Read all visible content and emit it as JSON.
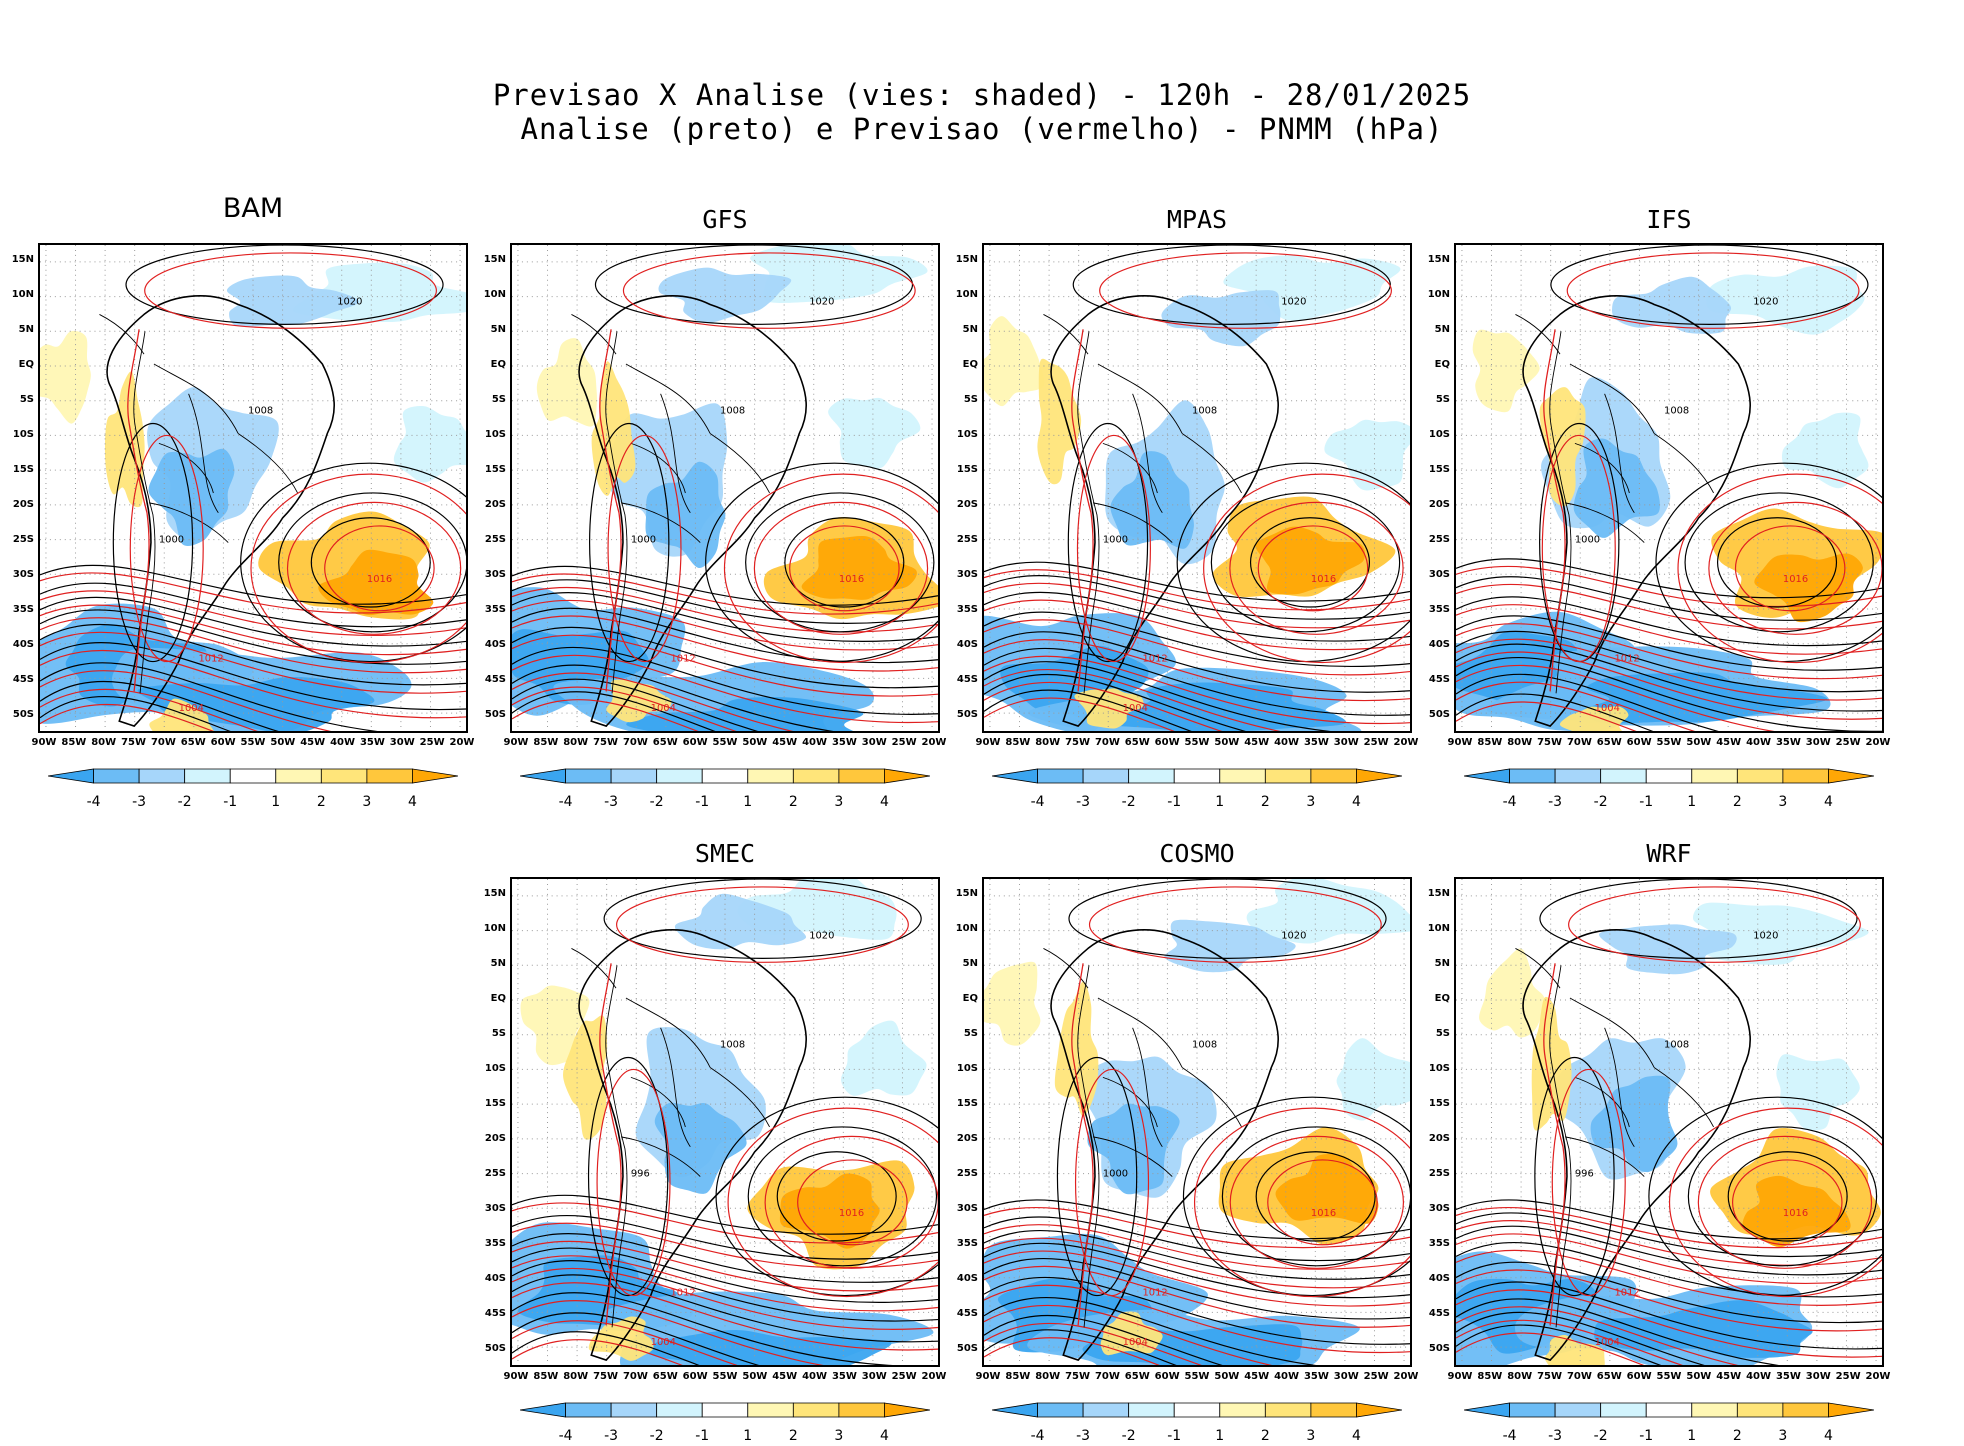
{
  "header": {
    "title_line1": "Previsao X Analise (vies: shaded) - 120h - 28/01/2025",
    "title_line2": "Analise (preto) e Previsao (vermelho) - PNMM (hPa)"
  },
  "axes": {
    "lat_labels": [
      "15N",
      "10N",
      "5N",
      "EQ",
      "5S",
      "10S",
      "15S",
      "20S",
      "25S",
      "30S",
      "35S",
      "40S",
      "45S",
      "50S"
    ],
    "lon_labels": [
      "90W",
      "85W",
      "80W",
      "75W",
      "70W",
      "65W",
      "60W",
      "55W",
      "50W",
      "45W",
      "40W",
      "35W",
      "30W",
      "25W",
      "20W"
    ]
  },
  "colorbar": {
    "labels": [
      "-4",
      "-3",
      "-2",
      "-1",
      "1",
      "2",
      "3",
      "4"
    ],
    "colors": [
      "#3aa5f0",
      "#6cbcf5",
      "#a6d6fa",
      "#d2f4fd",
      "#ffffff",
      "#fff7b4",
      "#ffe57a",
      "#ffc73c",
      "#ffa705"
    ]
  },
  "colors": {
    "analysis": "#000000",
    "forecast": "#e02020"
  },
  "panels": [
    {
      "id": "bam",
      "name": "BAM",
      "isobar_labels": [
        "1016",
        "1020",
        "1012",
        "1008",
        "1004",
        "1000"
      ]
    },
    {
      "id": "gfs",
      "name": "GFS",
      "isobar_labels": [
        "1016",
        "1020",
        "1012",
        "1008",
        "1004",
        "1000"
      ]
    },
    {
      "id": "mpas",
      "name": "MPAS",
      "isobar_labels": [
        "1016",
        "1020",
        "1012",
        "1008",
        "1004",
        "1000"
      ]
    },
    {
      "id": "ifs",
      "name": "IFS",
      "isobar_labels": [
        "1016",
        "1020",
        "1012",
        "1008",
        "1004",
        "1000"
      ]
    },
    {
      "id": "smec",
      "name": "SMEC",
      "isobar_labels": [
        "1016",
        "1020",
        "1012",
        "1008",
        "1004",
        "996"
      ]
    },
    {
      "id": "cosmo",
      "name": "COSMO",
      "isobar_labels": [
        "1016",
        "1020",
        "1012",
        "1008",
        "1004",
        "1000"
      ]
    },
    {
      "id": "wrf",
      "name": "WRF",
      "isobar_labels": [
        "1016",
        "1020",
        "1012",
        "1008",
        "1004",
        "996"
      ]
    }
  ]
}
